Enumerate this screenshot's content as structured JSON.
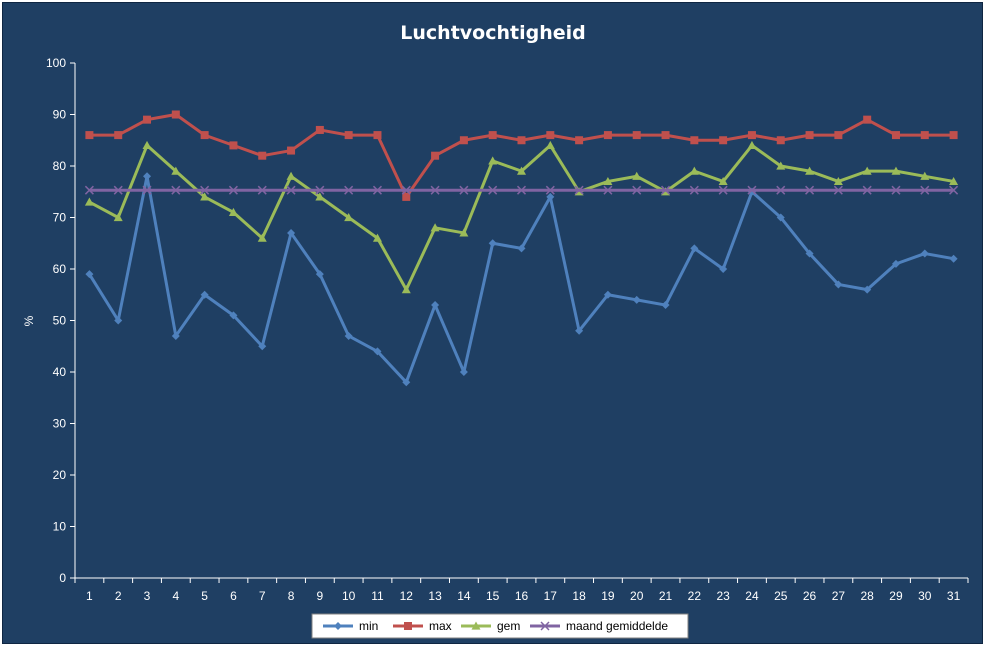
{
  "chart_data": {
    "type": "line",
    "title": "Luchtvochtigheid",
    "xlabel": "",
    "ylabel": "%",
    "ylim": [
      0,
      100
    ],
    "yticks": [
      0,
      10,
      20,
      30,
      40,
      50,
      60,
      70,
      80,
      90,
      100
    ],
    "categories": [
      "1",
      "2",
      "3",
      "4",
      "5",
      "6",
      "7",
      "8",
      "9",
      "10",
      "11",
      "12",
      "13",
      "14",
      "15",
      "16",
      "17",
      "18",
      "19",
      "20",
      "21",
      "22",
      "23",
      "24",
      "25",
      "26",
      "27",
      "28",
      "29",
      "30",
      "31"
    ],
    "grid": false,
    "legend_position": "bottom",
    "series": [
      {
        "name": "min",
        "color": "#4f81bd",
        "marker": "diamond",
        "values": [
          59,
          50,
          78,
          47,
          55,
          51,
          45,
          67,
          59,
          47,
          44,
          38,
          53,
          40,
          65,
          64,
          74,
          48,
          55,
          54,
          53,
          64,
          60,
          75,
          70,
          63,
          57,
          56,
          61,
          63,
          62
        ]
      },
      {
        "name": "max",
        "color": "#c0504d",
        "marker": "square",
        "values": [
          86,
          86,
          89,
          90,
          86,
          84,
          82,
          83,
          87,
          86,
          86,
          74,
          82,
          85,
          86,
          85,
          86,
          85,
          86,
          86,
          86,
          85,
          85,
          86,
          85,
          86,
          86,
          89,
          86,
          86,
          86
        ]
      },
      {
        "name": "gem",
        "color": "#9bbb59",
        "marker": "triangle",
        "values": [
          73,
          70,
          84,
          79,
          74,
          71,
          66,
          78,
          74,
          70,
          66,
          56,
          68,
          67,
          81,
          79,
          84,
          75,
          77,
          78,
          75,
          79,
          77,
          84,
          80,
          79,
          77,
          79,
          79,
          78,
          77
        ]
      },
      {
        "name": "maand gemiddelde",
        "color": "#8064a2",
        "marker": "x",
        "values": [
          75.3,
          75.3,
          75.3,
          75.3,
          75.3,
          75.3,
          75.3,
          75.3,
          75.3,
          75.3,
          75.3,
          75.3,
          75.3,
          75.3,
          75.3,
          75.3,
          75.3,
          75.3,
          75.3,
          75.3,
          75.3,
          75.3,
          75.3,
          75.3,
          75.3,
          75.3,
          75.3,
          75.3,
          75.3,
          75.3,
          75.3
        ]
      }
    ]
  }
}
